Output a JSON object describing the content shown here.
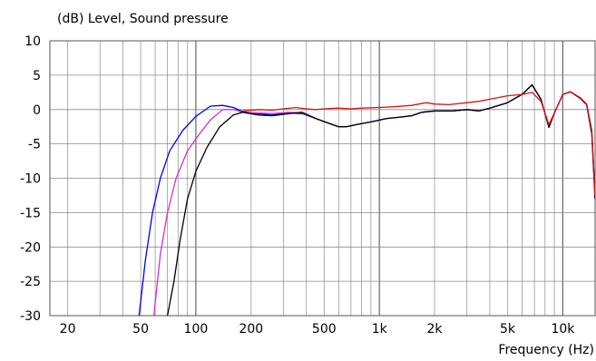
{
  "chart_data": {
    "type": "line",
    "title": "(dB)  Level, Sound pressure",
    "xlabel": "Frequency  (Hz)",
    "ylabel": "(dB)",
    "x_scale": "log",
    "xlim": [
      16,
      15000
    ],
    "ylim": [
      -30,
      10
    ],
    "grid": true,
    "y_ticks": [
      10,
      5,
      0,
      -5,
      -10,
      -15,
      -20,
      -25,
      -30
    ],
    "x_ticks": [
      {
        "value": 20,
        "label": "20"
      },
      {
        "value": 50,
        "label": "50"
      },
      {
        "value": 100,
        "label": "100"
      },
      {
        "value": 200,
        "label": "200"
      },
      {
        "value": 500,
        "label": "500"
      },
      {
        "value": 1000,
        "label": "1k"
      },
      {
        "value": 2000,
        "label": "2k"
      },
      {
        "value": 5000,
        "label": "5k"
      },
      {
        "value": 10000,
        "label": "10k"
      }
    ],
    "series": [
      {
        "color": "#0000ee",
        "points": [
          [
            49,
            -30
          ],
          [
            53,
            -22
          ],
          [
            58,
            -15
          ],
          [
            64,
            -10
          ],
          [
            72,
            -6
          ],
          [
            85,
            -3
          ],
          [
            100,
            -1
          ],
          [
            120,
            0.5
          ],
          [
            140,
            0.6
          ],
          [
            160,
            0.3
          ],
          [
            180,
            -0.3
          ],
          [
            220,
            -0.6
          ],
          [
            260,
            -0.8
          ],
          [
            320,
            -0.5
          ],
          [
            380,
            -0.6
          ],
          [
            450,
            -1.3
          ],
          [
            530,
            -2
          ],
          [
            600,
            -2.5
          ],
          [
            660,
            -2.5
          ],
          [
            750,
            -2.2
          ],
          [
            900,
            -1.8
          ],
          [
            1100,
            -1.3
          ],
          [
            1300,
            -1.1
          ],
          [
            1500,
            -0.9
          ],
          [
            1700,
            -0.4
          ],
          [
            2000,
            -0.2
          ],
          [
            2500,
            -0.2
          ],
          [
            3000,
            0
          ],
          [
            3500,
            -0.2
          ],
          [
            4000,
            0.2
          ],
          [
            5000,
            1
          ],
          [
            6000,
            2.2
          ],
          [
            6800,
            3.6
          ],
          [
            7600,
            1.5
          ],
          [
            8400,
            -2.6
          ],
          [
            9000,
            -0.5
          ],
          [
            10000,
            2.2
          ],
          [
            11000,
            2.6
          ],
          [
            12500,
            1.6
          ],
          [
            13500,
            0.7
          ],
          [
            14400,
            -3.5
          ],
          [
            15000,
            -13
          ]
        ]
      },
      {
        "color": "#cc33cc",
        "points": [
          [
            59,
            -30
          ],
          [
            64,
            -21
          ],
          [
            70,
            -15
          ],
          [
            78,
            -10
          ],
          [
            90,
            -6
          ],
          [
            105,
            -3.5
          ],
          [
            120,
            -1.5
          ],
          [
            140,
            0
          ],
          [
            160,
            0
          ],
          [
            180,
            -0.4
          ],
          [
            220,
            -0.5
          ],
          [
            260,
            -0.6
          ],
          [
            320,
            -0.4
          ],
          [
            380,
            -0.5
          ],
          [
            450,
            -1.3
          ],
          [
            530,
            -2
          ],
          [
            600,
            -2.5
          ],
          [
            660,
            -2.5
          ],
          [
            750,
            -2.2
          ],
          [
            900,
            -1.8
          ],
          [
            1100,
            -1.3
          ],
          [
            1300,
            -1.1
          ],
          [
            1500,
            -0.9
          ],
          [
            1700,
            -0.4
          ],
          [
            2000,
            -0.2
          ],
          [
            2500,
            -0.2
          ],
          [
            3000,
            0
          ],
          [
            3500,
            -0.2
          ],
          [
            4000,
            0.2
          ],
          [
            5000,
            1
          ],
          [
            6000,
            2.2
          ],
          [
            6800,
            3.6
          ],
          [
            7600,
            1.5
          ],
          [
            8400,
            -2.6
          ],
          [
            9000,
            -0.5
          ],
          [
            10000,
            2.2
          ],
          [
            11000,
            2.6
          ],
          [
            12500,
            1.6
          ],
          [
            13500,
            0.7
          ],
          [
            14400,
            -3.5
          ],
          [
            15000,
            -13
          ]
        ]
      },
      {
        "color": "#000000",
        "points": [
          [
            70,
            -30
          ],
          [
            76,
            -25
          ],
          [
            82,
            -19
          ],
          [
            90,
            -13
          ],
          [
            100,
            -9
          ],
          [
            115,
            -5.5
          ],
          [
            135,
            -2.5
          ],
          [
            160,
            -0.8
          ],
          [
            180,
            -0.4
          ],
          [
            220,
            -0.8
          ],
          [
            260,
            -0.9
          ],
          [
            320,
            -0.6
          ],
          [
            380,
            -0.4
          ],
          [
            450,
            -1.3
          ],
          [
            530,
            -2
          ],
          [
            600,
            -2.5
          ],
          [
            660,
            -2.5
          ],
          [
            750,
            -2.2
          ],
          [
            900,
            -1.8
          ],
          [
            1100,
            -1.3
          ],
          [
            1300,
            -1.1
          ],
          [
            1500,
            -0.9
          ],
          [
            1700,
            -0.4
          ],
          [
            2000,
            -0.2
          ],
          [
            2500,
            -0.2
          ],
          [
            3000,
            0
          ],
          [
            3500,
            -0.2
          ],
          [
            4000,
            0.2
          ],
          [
            5000,
            1
          ],
          [
            6000,
            2.2
          ],
          [
            6800,
            3.6
          ],
          [
            7600,
            1.5
          ],
          [
            8400,
            -2.6
          ],
          [
            9000,
            -0.5
          ],
          [
            10000,
            2.2
          ],
          [
            11000,
            2.6
          ],
          [
            12500,
            1.6
          ],
          [
            13500,
            0.7
          ],
          [
            14400,
            -3.5
          ],
          [
            15000,
            -13
          ]
        ]
      },
      {
        "color": "#dd1111",
        "points": [
          [
            180,
            -0.2
          ],
          [
            220,
            0
          ],
          [
            260,
            -0.1
          ],
          [
            300,
            0.1
          ],
          [
            350,
            0.3
          ],
          [
            400,
            0.1
          ],
          [
            450,
            0
          ],
          [
            500,
            0.1
          ],
          [
            600,
            0.2
          ],
          [
            700,
            0.1
          ],
          [
            800,
            0.2
          ],
          [
            1000,
            0.3
          ],
          [
            1200,
            0.4
          ],
          [
            1500,
            0.6
          ],
          [
            1800,
            1
          ],
          [
            2000,
            0.8
          ],
          [
            2400,
            0.7
          ],
          [
            3000,
            1
          ],
          [
            3500,
            1.2
          ],
          [
            4000,
            1.5
          ],
          [
            5000,
            2
          ],
          [
            6000,
            2.2
          ],
          [
            6800,
            2.5
          ],
          [
            7600,
            1.2
          ],
          [
            8400,
            -2.2
          ],
          [
            9000,
            -0.5
          ],
          [
            10000,
            2.2
          ],
          [
            11000,
            2.6
          ],
          [
            12500,
            1.7
          ],
          [
            13500,
            0.8
          ],
          [
            14400,
            -3
          ],
          [
            15000,
            -12.5
          ]
        ]
      }
    ]
  }
}
